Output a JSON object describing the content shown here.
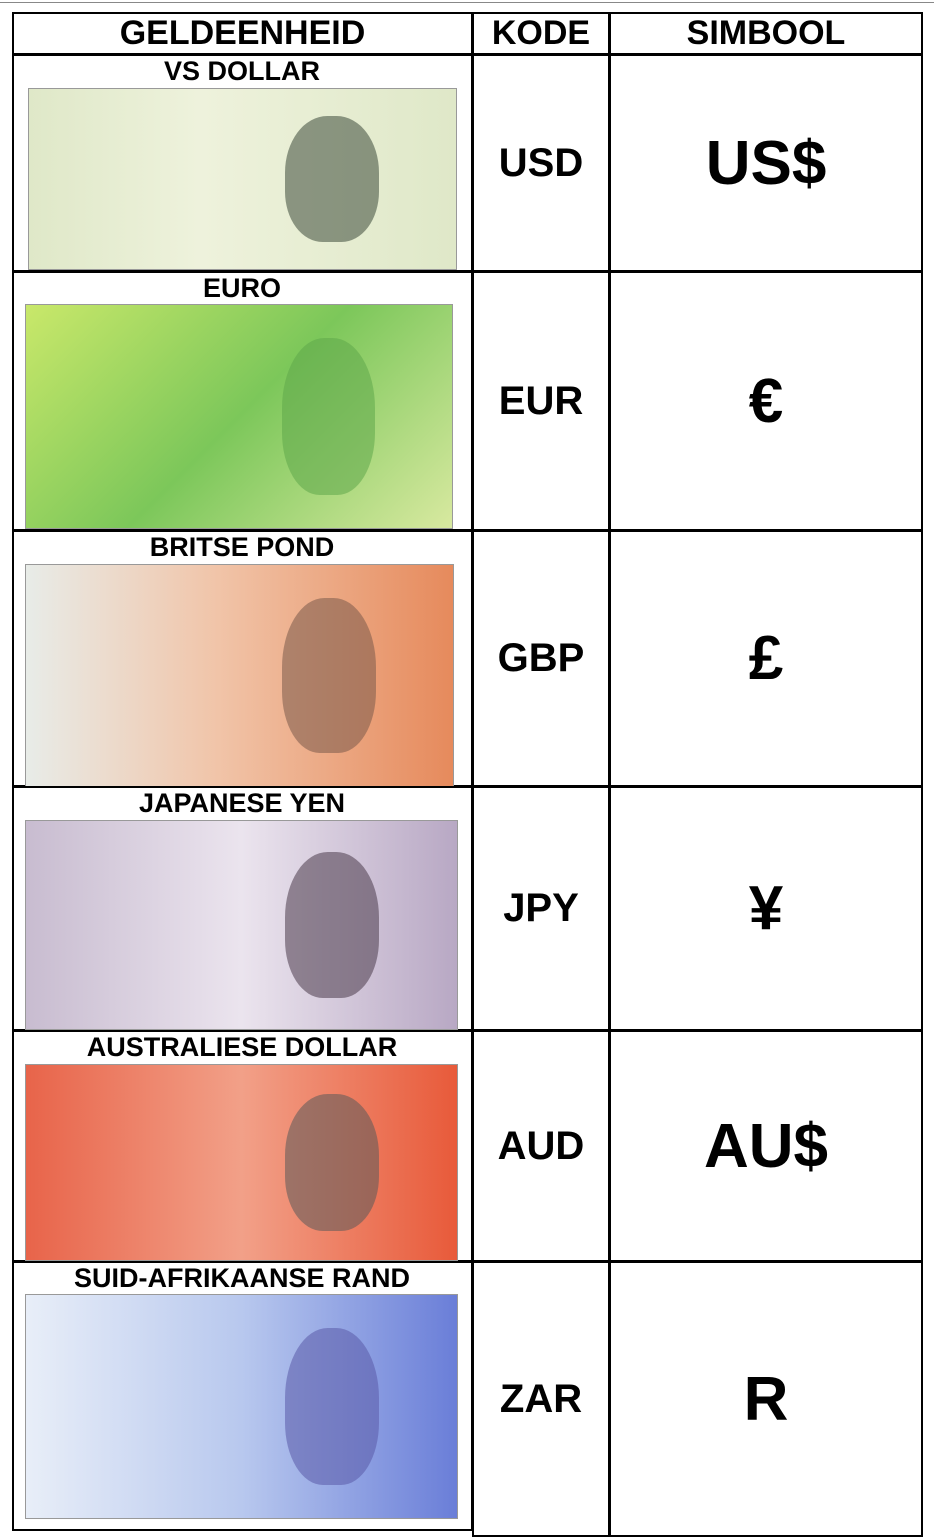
{
  "table": {
    "header": [
      "GELDEENHEID",
      "KODE",
      "SIMBOOL"
    ],
    "rows": [
      [
        "VS DOLLAR",
        "USD",
        "US$"
      ],
      [
        "EURO",
        "EUR",
        "€"
      ],
      [
        "BRITSE POND",
        "GBP",
        "£"
      ],
      [
        "JAPANESE YEN",
        "JPY",
        "¥"
      ],
      [
        "AUSTRALIESE DOLLAR",
        "AUD",
        "AU$"
      ],
      [
        "SUID-AFRIKAANSE RAND",
        "ZAR",
        "R"
      ]
    ]
  }
}
